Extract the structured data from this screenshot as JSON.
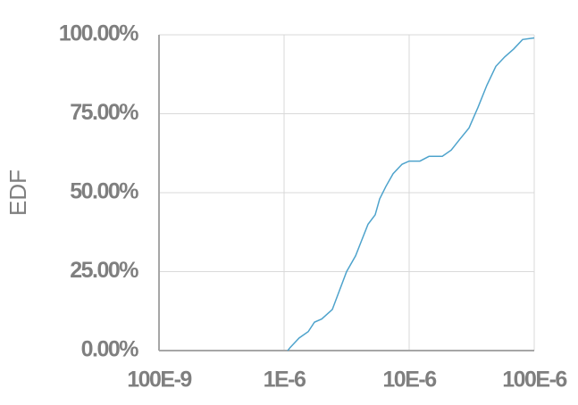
{
  "chart_data": {
    "type": "line",
    "y_label": "EDF",
    "x_log": true,
    "grid": true,
    "xlim": [
      1e-07,
      0.0001
    ],
    "xticks": [
      {
        "value": 1e-07,
        "label": "100E-9"
      },
      {
        "value": 1e-06,
        "label": "1E-6"
      },
      {
        "value": 1e-05,
        "label": "10E-6"
      },
      {
        "value": 0.0001,
        "label": "100E-6"
      }
    ],
    "ylim": [
      0,
      100
    ],
    "yticks": [
      {
        "value": 0,
        "label": "0.00%"
      },
      {
        "value": 25,
        "label": "25.00%"
      },
      {
        "value": 50,
        "label": "50.00%"
      },
      {
        "value": 75,
        "label": "75.00%"
      },
      {
        "value": 100,
        "label": "100.00%"
      }
    ],
    "series": [
      {
        "color": "#4ea3cc",
        "x": [
          1.07e-06,
          1.12e-06,
          1.32e-06,
          1.56e-06,
          1.75e-06,
          2e-06,
          2.43e-06,
          2.77e-06,
          3.16e-06,
          3.73e-06,
          4.18e-06,
          4.69e-06,
          5.35e-06,
          5.81e-06,
          6.52e-06,
          7.44e-06,
          8.77e-06,
          1e-05,
          1.22e-05,
          1.44e-05,
          1.84e-05,
          2.17e-05,
          2.55e-05,
          3.01e-05,
          3.55e-05,
          4.18e-05,
          4.93e-05,
          5.81e-05,
          6.85e-05,
          8.07e-05,
          0.0001
        ],
        "values": [
          0,
          1,
          4,
          6,
          9,
          10,
          13,
          19,
          25,
          30,
          35,
          40,
          43,
          48,
          52,
          56,
          59,
          60,
          60,
          61.5,
          61.5,
          63.5,
          67,
          70.5,
          77,
          84,
          90,
          93,
          95.5,
          98.5,
          99
        ]
      }
    ]
  }
}
